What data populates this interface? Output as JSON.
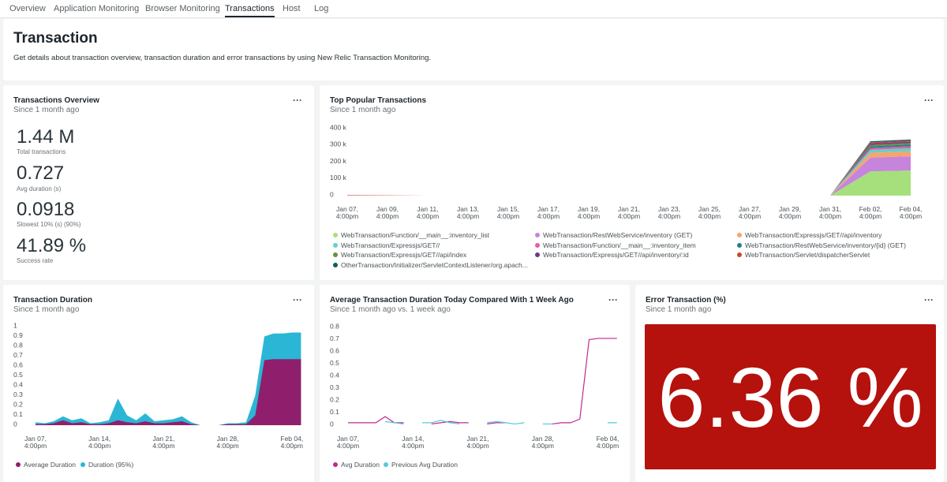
{
  "tabs": {
    "items": [
      "Overview",
      "Application Monitoring",
      "Browser Monitoring",
      "Transactions",
      "Host",
      "Log"
    ],
    "active": 3
  },
  "header": {
    "title": "Transaction",
    "description": "Get details about transaction overview, transaction duration and error transactions by using New Relic Transaction Monitoring."
  },
  "overview": {
    "title": "Transactions Overview",
    "subtitle": "Since 1 month ago",
    "metrics": [
      {
        "value": "1.44 M",
        "label": "Total transactions"
      },
      {
        "value": "0.727",
        "label": "Avg duration (s)"
      },
      {
        "value": "0.0918",
        "label": "Slowest 10% (s) (90%)"
      },
      {
        "value": "41.89 %",
        "label": "Success rate"
      }
    ]
  },
  "error_transaction": {
    "title": "Error Transaction (%)",
    "subtitle": "Since 1 month ago",
    "value": "6.36 %",
    "color": "#b5110d"
  },
  "chart_data": [
    {
      "type": "area",
      "stacked": true,
      "title": "Top Popular Transactions",
      "subtitle": "Since 1 month ago",
      "categories": [
        "Jan 07, 4:00pm",
        "Jan 09, 4:00pm",
        "Jan 11, 4:00pm",
        "Jan 13, 4:00pm",
        "Jan 15, 4:00pm",
        "Jan 17, 4:00pm",
        "Jan 19, 4:00pm",
        "Jan 21, 4:00pm",
        "Jan 23, 4:00pm",
        "Jan 25, 4:00pm",
        "Jan 27, 4:00pm",
        "Jan 29, 4:00pm",
        "Jan 31, 4:00pm",
        "Feb 02, 4:00pm",
        "Feb 04, 4:00pm"
      ],
      "ylim": [
        0,
        400000
      ],
      "yticks": [
        0,
        {
          "value": 100000,
          "label": "100 k"
        },
        {
          "value": 200000,
          "label": "200 k"
        },
        {
          "value": 300000,
          "label": "300 k"
        },
        {
          "value": 400000,
          "label": "400 k"
        }
      ],
      "grid": false,
      "legend": "bottom",
      "series": [
        {
          "name": "WebTransaction/Function/__main__:inventory_list",
          "color": "#a6e07c",
          "values": [
            0,
            0,
            0,
            0,
            0,
            0,
            0,
            0,
            0,
            0,
            0,
            0,
            0,
            145000,
            150000
          ]
        },
        {
          "name": "WebTransaction/RestWebService/inventory (GET)",
          "color": "#c684dc",
          "values": [
            0,
            0,
            0,
            0,
            0,
            0,
            0,
            0,
            0,
            0,
            0,
            0,
            0,
            82000,
            85000
          ]
        },
        {
          "name": "WebTransaction/Expressjs/GET//api/inventory",
          "color": "#f7a46e",
          "values": [
            0,
            0,
            0,
            0,
            0,
            0,
            0,
            0,
            0,
            0,
            0,
            0,
            0,
            29000,
            30000
          ]
        },
        {
          "name": "WebTransaction/Expressjs/GET//",
          "color": "#62d2c9",
          "values": [
            0,
            0,
            0,
            0,
            0,
            0,
            0,
            0,
            0,
            0,
            0,
            0,
            0,
            17000,
            18000
          ]
        },
        {
          "name": "WebTransaction/Function/__main__:inventory_item",
          "color": "#e65ca8",
          "values": [
            0,
            0,
            0,
            0,
            0,
            0,
            0,
            0,
            0,
            0,
            0,
            0,
            0,
            11000,
            12000
          ]
        },
        {
          "name": "WebTransaction/RestWebService/inventory/{id} (GET)",
          "color": "#1d8091",
          "values": [
            0,
            0,
            0,
            0,
            0,
            0,
            0,
            0,
            0,
            0,
            0,
            0,
            0,
            10000,
            10000
          ]
        },
        {
          "name": "WebTransaction/Expressjs/GET//api/index",
          "color": "#6b8f3e",
          "values": [
            0,
            0,
            0,
            0,
            0,
            0,
            0,
            0,
            0,
            0,
            0,
            0,
            0,
            9000,
            9000
          ]
        },
        {
          "name": "WebTransaction/Expressjs/GET//api/inventory/:id",
          "color": "#6a3b8d",
          "values": [
            0,
            0,
            0,
            0,
            0,
            0,
            0,
            0,
            0,
            0,
            0,
            0,
            0,
            8000,
            8000
          ]
        },
        {
          "name": "WebTransaction/Servlet/dispatcherServlet",
          "color": "#c9472f",
          "values": [
            3000,
            2000,
            0,
            0,
            0,
            0,
            0,
            0,
            0,
            0,
            0,
            0,
            0,
            7000,
            7000
          ]
        },
        {
          "name": "OtherTransaction/Initializer/ServletContextListener/org.apach...",
          "color": "#0f5f5a",
          "values": [
            0,
            0,
            0,
            0,
            0,
            0,
            0,
            0,
            0,
            0,
            0,
            0,
            0,
            6000,
            6000
          ]
        }
      ]
    },
    {
      "type": "area",
      "stacked": false,
      "title": "Transaction Duration",
      "subtitle": "Since 1 month ago",
      "categories": [
        "Jan 07, 4:00pm",
        null,
        null,
        null,
        null,
        null,
        null,
        "Jan 14, 4:00pm",
        null,
        null,
        null,
        null,
        null,
        null,
        "Jan 21, 4:00pm",
        null,
        null,
        null,
        null,
        null,
        null,
        "Jan 28, 4:00pm",
        null,
        null,
        null,
        null,
        null,
        null,
        "Feb 04, 4:00pm",
        null
      ],
      "ylim": [
        0,
        1
      ],
      "yticks": [
        0,
        0.1,
        0.2,
        0.3,
        0.4,
        0.5,
        0.6,
        0.7,
        0.8,
        0.9,
        1
      ],
      "grid": false,
      "legend": "bottom",
      "series": [
        {
          "name": "Average Duration",
          "color": "#8f1f6c",
          "values": [
            0.01,
            0.01,
            0.02,
            0.05,
            0.02,
            0.03,
            0.01,
            0.01,
            0.02,
            0.05,
            0.03,
            0.02,
            0.04,
            0.02,
            0.02,
            0.03,
            0.04,
            0.01,
            0,
            0,
            0,
            0.01,
            0.01,
            0.01,
            0.1,
            0.66,
            0.67,
            0.67,
            0.67,
            0.67
          ]
        },
        {
          "name": "Duration (95%)",
          "color": "#2bb6d6",
          "values": [
            0.03,
            0.02,
            0.04,
            0.09,
            0.05,
            0.07,
            0.02,
            0.03,
            0.05,
            0.27,
            0.1,
            0.05,
            0.12,
            0.04,
            0.05,
            0.06,
            0.09,
            0.03,
            0,
            0,
            0,
            0.02,
            0.02,
            0.03,
            0.3,
            0.9,
            0.93,
            0.93,
            0.94,
            0.94
          ]
        }
      ]
    },
    {
      "type": "line",
      "title": "Average Transaction Duration Today Compared With 1 Week Ago",
      "subtitle": "Since 1 month ago vs. 1 week ago",
      "categories": [
        "Jan 07, 4:00pm",
        null,
        null,
        null,
        null,
        null,
        null,
        "Jan 14, 4:00pm",
        null,
        null,
        null,
        null,
        null,
        null,
        "Jan 21, 4:00pm",
        null,
        null,
        null,
        null,
        null,
        null,
        "Jan 28, 4:00pm",
        null,
        null,
        null,
        null,
        null,
        null,
        "Feb 04, 4:00pm",
        null
      ],
      "ylim": [
        0,
        0.8
      ],
      "yticks": [
        0,
        0.1,
        0.2,
        0.3,
        0.4,
        0.5,
        0.6,
        0.7,
        0.8
      ],
      "grid": false,
      "legend": "bottom",
      "series": [
        {
          "name": "Avg Duration",
          "color": "#c1298f",
          "values": [
            0.02,
            0.02,
            0.02,
            0.02,
            0.07,
            0.02,
            0.02,
            null,
            null,
            0.01,
            0.02,
            0.03,
            0.02,
            0.02,
            null,
            0.01,
            0.02,
            0.02,
            null,
            null,
            null,
            null,
            0.01,
            0.02,
            0.02,
            0.05,
            0.7,
            0.71,
            0.71,
            0.71
          ]
        },
        {
          "name": "Previous Avg Duration",
          "color": "#52c9e0",
          "values": [
            null,
            null,
            null,
            null,
            0.03,
            0.02,
            0.01,
            null,
            0.02,
            0.02,
            0.04,
            0.02,
            0.01,
            null,
            null,
            0.02,
            0.03,
            0.02,
            0.01,
            0.02,
            null,
            0.01,
            0.01,
            null,
            null,
            null,
            null,
            null,
            0.02,
            0.02
          ]
        }
      ]
    }
  ]
}
